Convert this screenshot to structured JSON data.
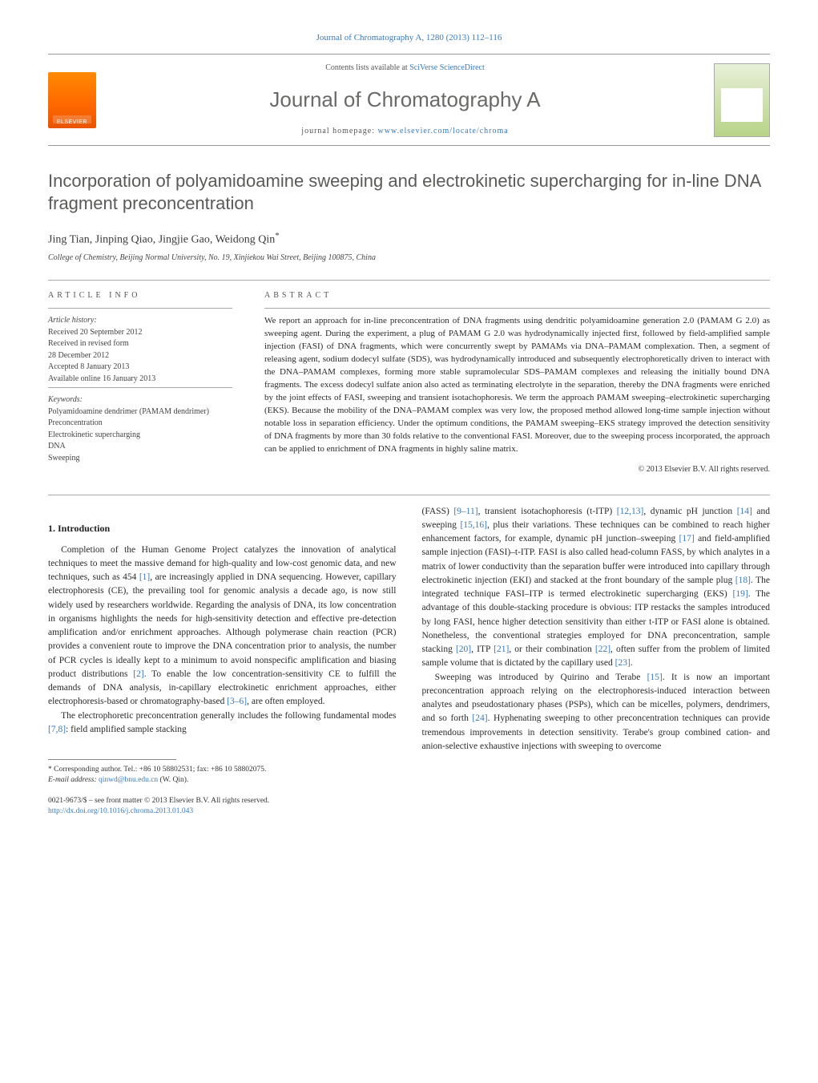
{
  "journal_ref": "Journal of Chromatography A, 1280 (2013) 112–116",
  "masthead": {
    "publisher_logo_text": "ELSEVIER",
    "contents_prefix": "Contents lists available at ",
    "contents_link": "SciVerse ScienceDirect",
    "journal_title": "Journal of Chromatography A",
    "homepage_prefix": "journal homepage: ",
    "homepage_link": "www.elsevier.com/locate/chroma"
  },
  "article": {
    "title": "Incorporation of polyamidoamine sweeping and electrokinetic supercharging for in-line DNA fragment preconcentration",
    "authors": "Jing Tian, Jinping Qiao, Jingjie Gao, Weidong Qin",
    "corr_mark": "*",
    "affiliation": "College of Chemistry, Beijing Normal University, No. 19, Xinjiekou Wai Street, Beijing 100875, China"
  },
  "info": {
    "label": "ARTICLE INFO",
    "history_label": "Article history:",
    "received": "Received 20 September 2012",
    "revised1": "Received in revised form",
    "revised2": "28 December 2012",
    "accepted": "Accepted 8 January 2013",
    "online": "Available online 16 January 2013",
    "keywords_label": "Keywords:",
    "kw1": "Polyamidoamine dendrimer (PAMAM dendrimer)",
    "kw2": "Preconcentration",
    "kw3": "Electrokinetic supercharging",
    "kw4": "DNA",
    "kw5": "Sweeping"
  },
  "abstract": {
    "label": "ABSTRACT",
    "text": "We report an approach for in-line preconcentration of DNA fragments using dendritic polyamidoamine generation 2.0 (PAMAM G 2.0) as sweeping agent. During the experiment, a plug of PAMAM G 2.0 was hydrodynamically injected first, followed by field-amplified sample injection (FASI) of DNA fragments, which were concurrently swept by PAMAMs via DNA–PAMAM complexation. Then, a segment of releasing agent, sodium dodecyl sulfate (SDS), was hydrodynamically introduced and subsequently electrophoretically driven to interact with the DNA–PAMAM complexes, forming more stable supramolecular SDS–PAMAM complexes and releasing the initially bound DNA fragments. The excess dodecyl sulfate anion also acted as terminating electrolyte in the separation, thereby the DNA fragments were enriched by the joint effects of FASI, sweeping and transient isotachophoresis. We term the approach PAMAM sweeping–electrokinetic supercharging (EKS). Because the mobility of the DNA–PAMAM complex was very low, the proposed method allowed long-time sample injection without notable loss in separation efficiency. Under the optimum conditions, the PAMAM sweeping–EKS strategy improved the detection sensitivity of DNA fragments by more than 30 folds relative to the conventional FASI. Moreover, due to the sweeping process incorporated, the approach can be applied to enrichment of DNA fragments in highly saline matrix.",
    "copyright": "© 2013 Elsevier B.V. All rights reserved."
  },
  "body": {
    "heading": "1. Introduction",
    "p1a": "Completion of the Human Genome Project catalyzes the innovation of analytical techniques to meet the massive demand for high-quality and low-cost genomic data, and new techniques, such as 454 ",
    "c1": "[1]",
    "p1b": ", are increasingly applied in DNA sequencing. However, capillary electrophoresis (CE), the prevailing tool for genomic analysis a decade ago, is now still widely used by researchers worldwide. Regarding the analysis of DNA, its low concentration in organisms highlights the needs for high-sensitivity detection and effective pre-detection amplification and/or enrichment approaches. Although polymerase chain reaction (PCR) provides a convenient route to improve the DNA concentration prior to analysis, the number of PCR cycles is ideally kept to a minimum to avoid nonspecific amplification and biasing product distributions ",
    "c2": "[2]",
    "p1c": ". To enable the low concentration-sensitivity CE to fulfill the demands of DNA analysis, in-capillary electrokinetic enrichment approaches, either electrophoresis-based or chromatography-based ",
    "c3": "[3–6]",
    "p1d": ", are often employed.",
    "p2a": "The electrophoretic preconcentration generally includes the following fundamental modes ",
    "c4": "[7,8]",
    "p2b": ": field amplified sample stacking",
    "p3a": "(FASS) ",
    "c5": "[9–11]",
    "p3b": ", transient isotachophoresis (t-ITP) ",
    "c6": "[12,13]",
    "p3c": ", dynamic pH junction ",
    "c7": "[14]",
    "p3d": " and sweeping ",
    "c8": "[15,16]",
    "p3e": ", plus their variations. These techniques can be combined to reach higher enhancement factors, for example, dynamic pH junction–sweeping ",
    "c9": "[17]",
    "p3f": " and field-amplified sample injection (FASI)–t-ITP. FASI is also called head-column FASS, by which analytes in a matrix of lower conductivity than the separation buffer were introduced into capillary through electrokinetic injection (EKI) and stacked at the front boundary of the sample plug ",
    "c10": "[18]",
    "p3g": ". The integrated technique FASI–ITP is termed electrokinetic supercharging (EKS) ",
    "c11": "[19]",
    "p3h": ". The advantage of this double-stacking procedure is obvious: ITP restacks the samples introduced by long FASI, hence higher detection sensitivity than either t-ITP or FASI alone is obtained. Nonetheless, the conventional strategies employed for DNA preconcentration, sample stacking ",
    "c12": "[20]",
    "p3i": ", ITP ",
    "c13": "[21]",
    "p3j": ", or their combination ",
    "c14": "[22]",
    "p3k": ", often suffer from the problem of limited sample volume that is dictated by the capillary used ",
    "c15": "[23]",
    "p3l": ".",
    "p4a": "Sweeping was introduced by Quirino and Terabe ",
    "c16": "[15]",
    "p4b": ". It is now an important preconcentration approach relying on the electrophoresis-induced interaction between analytes and pseudostationary phases (PSPs), which can be micelles, polymers, dendrimers, and so forth ",
    "c17": "[24]",
    "p4c": ". Hyphenating sweeping to other preconcentration techniques can provide tremendous improvements in detection sensitivity. Terabe's group combined cation- and anion-selective exhaustive injections with sweeping to overcome"
  },
  "footnote": {
    "corr": "* Corresponding author. Tel.: +86 10 58802531; fax: +86 10 58802075.",
    "email_label": "E-mail address: ",
    "email": "qinwd@bnu.edu.cn",
    "email_suffix": " (W. Qin)."
  },
  "bottom": {
    "issn": "0021-9673/$ – see front matter © 2013 Elsevier B.V. All rights reserved.",
    "doi": "http://dx.doi.org/10.1016/j.chroma.2013.01.043"
  },
  "colors": {
    "link": "#3a7ab5",
    "title_gray": "#5a5a58",
    "logo_orange": "#ff6600"
  }
}
